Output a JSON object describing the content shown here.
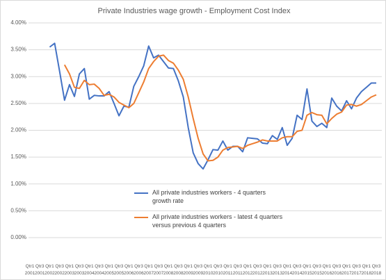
{
  "chart_data": {
    "type": "line",
    "title": "Private Industries wage growth - Employment Cost Index",
    "categories": [
      "Qtr1 2001",
      null,
      "Qtr3 2001",
      null,
      "Qtr1 2002",
      null,
      "Qtr3 2002",
      null,
      "Qtr1 2003",
      null,
      "Qtr3 2003",
      null,
      "Qtr1 2004",
      null,
      "Qtr3 2004",
      null,
      "Qtr1 2005",
      null,
      "Qtr3 2005",
      null,
      "Qtr1 2006",
      null,
      "Qtr3 2006",
      null,
      "Qtr1 2007",
      null,
      "Qtr3 2007",
      null,
      "Qtr1 2008",
      null,
      "Qtr3 2008",
      null,
      "Qtr1 2009",
      null,
      "Qtr3 2009",
      null,
      "Qtr1 2010",
      null,
      "Qtr3 2010",
      null,
      "Qtr1 2011",
      null,
      "Qtr3 2011",
      null,
      "Qtr1 2012",
      null,
      "Qtr3 2012",
      null,
      "Qtr1 2013",
      null,
      "Qtr3 2013",
      null,
      "Qtr1 2014",
      null,
      "Qtr3 2014",
      null,
      "Qtr1 2015",
      null,
      "Qtr3 2015",
      null,
      "Qtr1 2016",
      null,
      "Qtr3 2016",
      null,
      "Qtr1 2017",
      null,
      "Qtr3 2017",
      null,
      "Qtr1 2018",
      null,
      "Qtr3 2018"
    ],
    "series": [
      {
        "name": "All private industries workers - 4 quarters growth rate",
        "color": "#4472c4",
        "values": [
          null,
          null,
          null,
          null,
          3.55,
          3.62,
          3.1,
          2.56,
          2.85,
          2.63,
          3.05,
          3.15,
          2.58,
          2.65,
          2.64,
          2.64,
          2.72,
          2.5,
          2.27,
          2.45,
          2.43,
          2.82,
          3.0,
          3.2,
          3.57,
          3.35,
          3.4,
          3.28,
          3.16,
          3.15,
          2.92,
          2.62,
          2.05,
          1.58,
          1.38,
          1.28,
          1.45,
          1.64,
          1.63,
          1.8,
          1.63,
          1.7,
          1.7,
          1.6,
          1.86,
          1.85,
          1.84,
          1.76,
          1.75,
          1.9,
          1.83,
          2.05,
          1.72,
          1.85,
          2.28,
          2.2,
          2.77,
          2.17,
          2.07,
          2.13,
          2.05,
          2.6,
          2.45,
          2.36,
          2.55,
          2.4,
          2.6,
          2.72,
          2.8,
          2.88,
          2.88
        ]
      },
      {
        "name": "All private industries workers - latest 4 quarters versus previous 4 quarters",
        "color": "#ed7d31",
        "values": [
          null,
          null,
          null,
          null,
          null,
          null,
          null,
          3.22,
          3.05,
          2.8,
          2.78,
          2.93,
          2.85,
          2.86,
          2.78,
          2.65,
          2.67,
          2.62,
          2.52,
          2.47,
          2.42,
          2.5,
          2.7,
          2.9,
          3.15,
          3.28,
          3.38,
          3.4,
          3.3,
          3.25,
          3.12,
          2.95,
          2.62,
          2.22,
          1.85,
          1.56,
          1.43,
          1.44,
          1.5,
          1.63,
          1.68,
          1.69,
          1.7,
          1.66,
          1.72,
          1.75,
          1.78,
          1.82,
          1.8,
          1.8,
          1.8,
          1.86,
          1.88,
          1.88,
          1.98,
          2.0,
          2.28,
          2.33,
          2.29,
          2.28,
          2.12,
          2.22,
          2.3,
          2.34,
          2.47,
          2.48,
          2.45,
          2.48,
          2.55,
          2.62,
          2.66
        ]
      }
    ],
    "ylim": [
      0,
      4
    ],
    "yticks": [
      {
        "value": 0,
        "label": "0.00%"
      },
      {
        "value": 0.5,
        "label": "0.50%"
      },
      {
        "value": 1,
        "label": "1.00%"
      },
      {
        "value": 1.5,
        "label": "1.50%"
      },
      {
        "value": 2,
        "label": "2.00%"
      },
      {
        "value": 2.5,
        "label": "2.50%"
      },
      {
        "value": 3,
        "label": "3.00%"
      },
      {
        "value": 3.5,
        "label": "3.50%"
      },
      {
        "value": 4,
        "label": "4.00%"
      }
    ],
    "grid": true
  }
}
